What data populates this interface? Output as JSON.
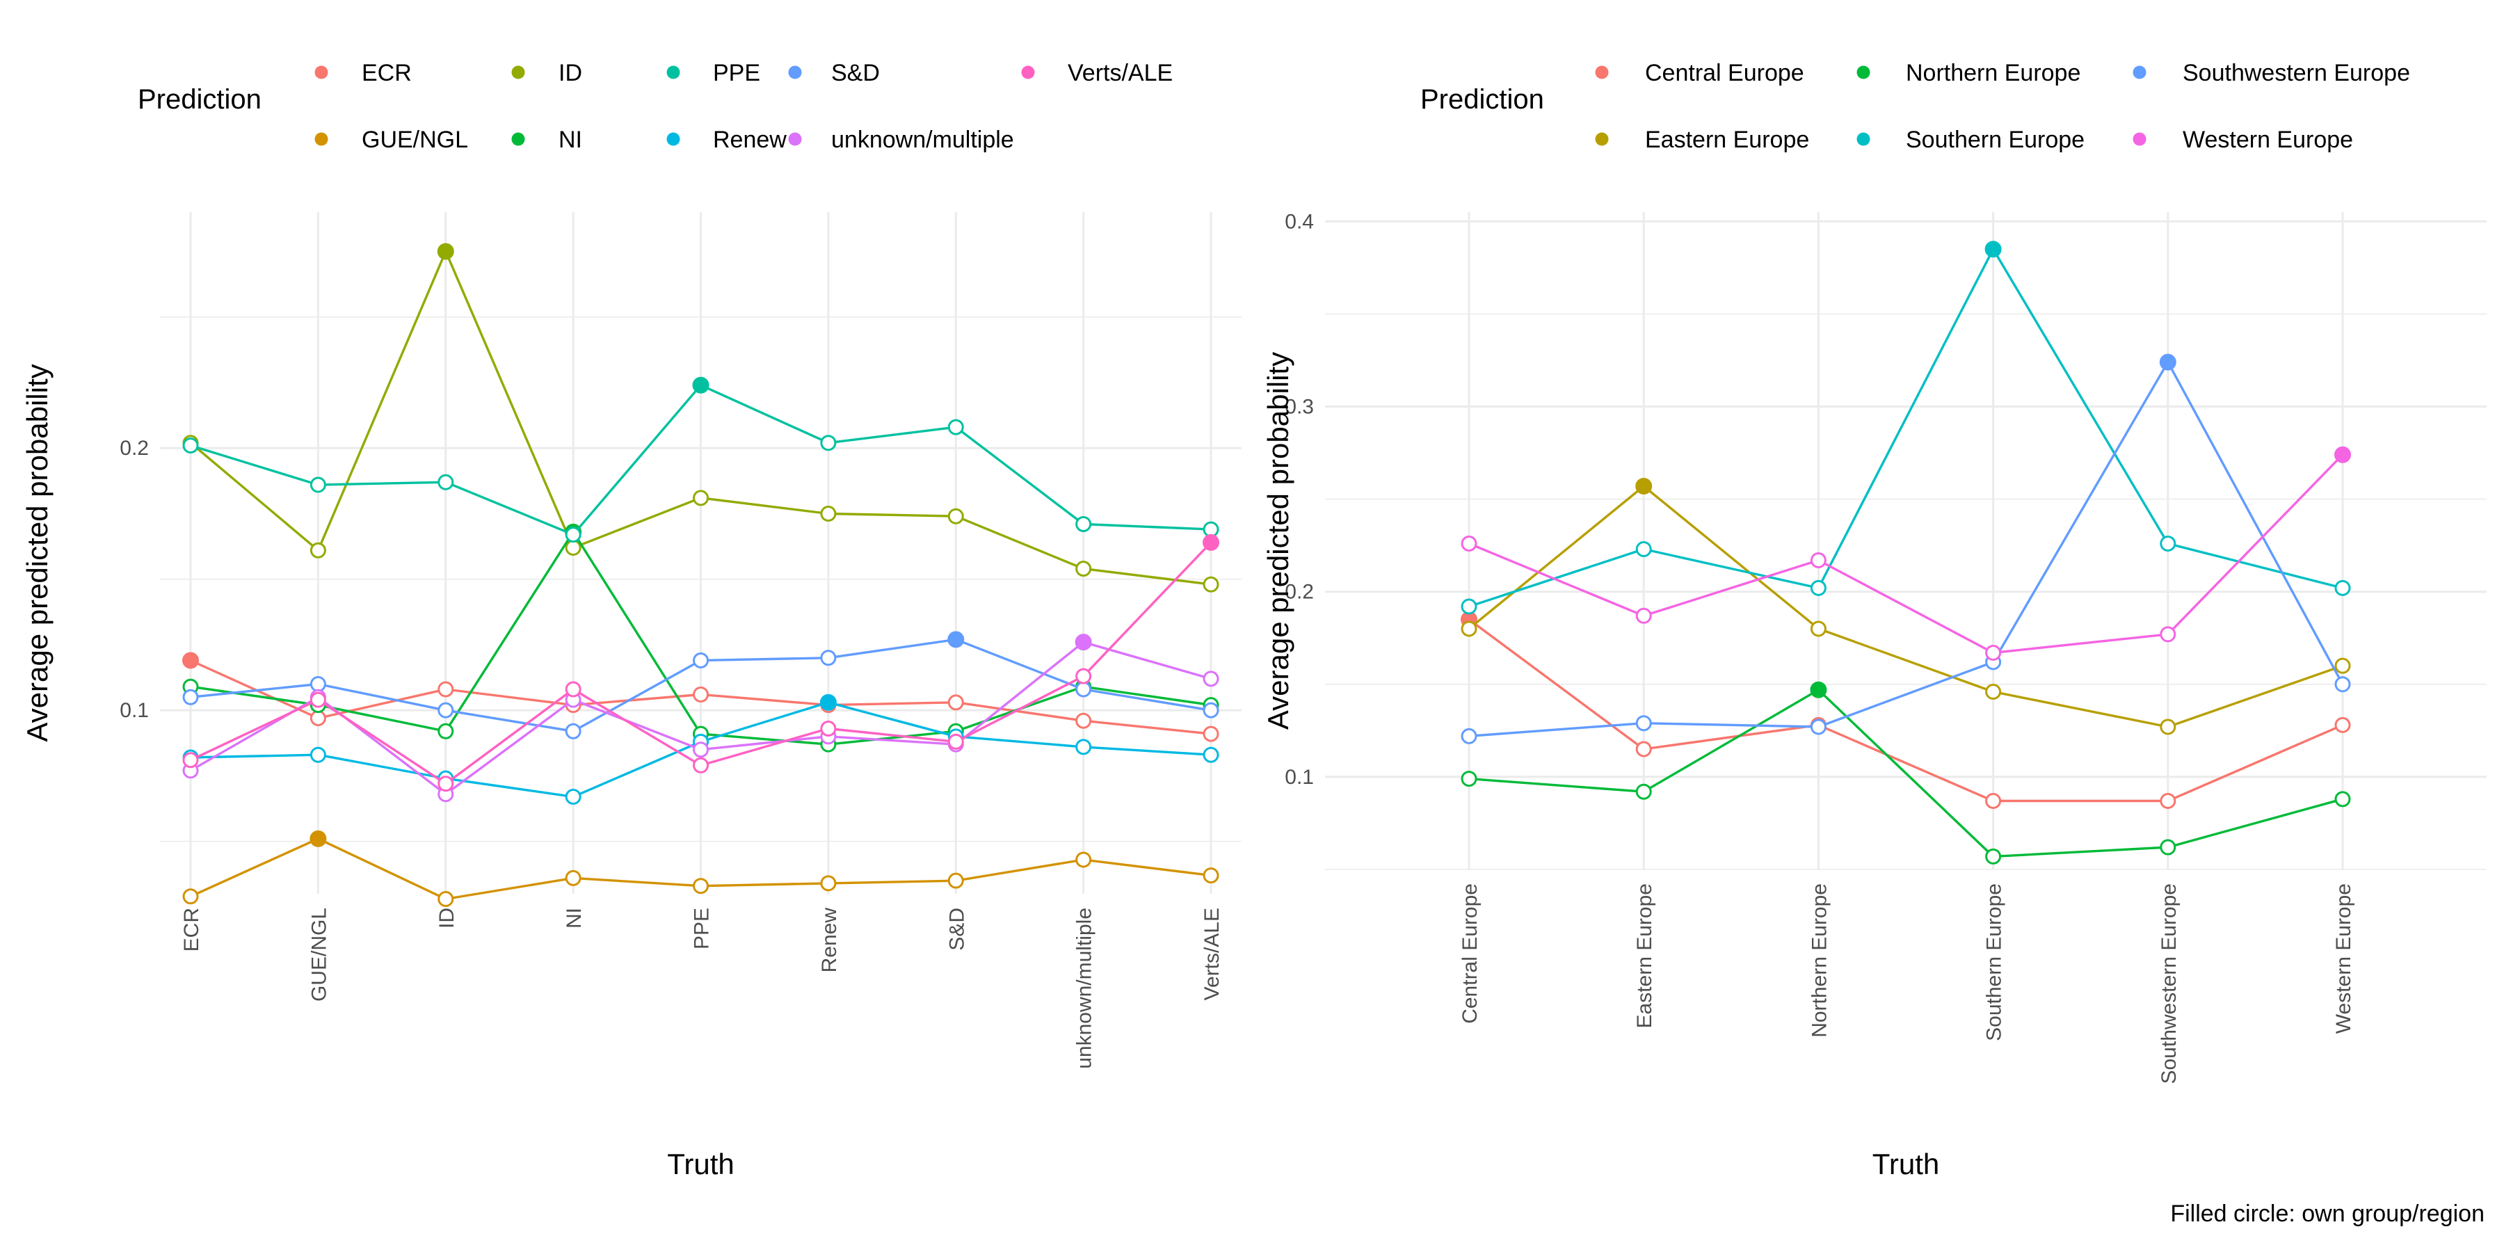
{
  "caption": "Filled circle: own group/region",
  "chart_data": [
    {
      "type": "line",
      "legend_title": "Prediction",
      "legend_placement": "top",
      "xlabel": "Truth",
      "ylabel": "Average predicted probability",
      "categories": [
        "ECR",
        "GUE/NGL",
        "ID",
        "NI",
        "PPE",
        "Renew",
        "S&D",
        "unknown/multiple",
        "Verts/ALE"
      ],
      "ylim": [
        0.03,
        0.29
      ],
      "yticks": [
        0.1,
        0.2
      ],
      "ytick_labels": [
        "0.1",
        "0.2"
      ],
      "grid": true,
      "series": [
        {
          "name": "ECR",
          "color": "#F8766D",
          "values": [
            0.119,
            0.097,
            0.108,
            0.102,
            0.106,
            0.102,
            0.103,
            0.096,
            0.091
          ]
        },
        {
          "name": "GUE/NGL",
          "color": "#D39200",
          "values": [
            0.029,
            0.051,
            0.028,
            0.036,
            0.033,
            0.034,
            0.035,
            0.043,
            0.037
          ]
        },
        {
          "name": "ID",
          "color": "#93AA00",
          "values": [
            0.202,
            0.161,
            0.275,
            0.162,
            0.181,
            0.175,
            0.174,
            0.154,
            0.148
          ]
        },
        {
          "name": "NI",
          "color": "#00BA38",
          "values": [
            0.109,
            0.102,
            0.092,
            0.168,
            0.091,
            0.087,
            0.092,
            0.109,
            0.102
          ]
        },
        {
          "name": "PPE",
          "color": "#00C19F",
          "values": [
            0.201,
            0.186,
            0.187,
            0.167,
            0.224,
            0.202,
            0.208,
            0.171,
            0.169
          ]
        },
        {
          "name": "Renew",
          "color": "#00B9E3",
          "values": [
            0.082,
            0.083,
            0.074,
            0.067,
            0.088,
            0.103,
            0.09,
            0.086,
            0.083
          ]
        },
        {
          "name": "S&D",
          "color": "#619CFF",
          "values": [
            0.105,
            0.11,
            0.1,
            0.092,
            0.119,
            0.12,
            0.127,
            0.108,
            0.1
          ]
        },
        {
          "name": "unknown/multiple",
          "color": "#DB72FB",
          "values": [
            0.077,
            0.105,
            0.068,
            0.104,
            0.085,
            0.09,
            0.087,
            0.126,
            0.112
          ]
        },
        {
          "name": "Verts/ALE",
          "color": "#FF61C3",
          "values": [
            0.081,
            0.104,
            0.072,
            0.108,
            0.079,
            0.093,
            0.088,
            0.113,
            0.164
          ]
        }
      ]
    },
    {
      "type": "line",
      "legend_title": "Prediction",
      "legend_placement": "top",
      "xlabel": "Truth",
      "ylabel": "Average predicted probability",
      "categories": [
        "Central Europe",
        "Eastern Europe",
        "Northern Europe",
        "Southern Europe",
        "Southwestern Europe",
        "Western Europe"
      ],
      "ylim": [
        0.05,
        0.405
      ],
      "yticks": [
        0.1,
        0.2,
        0.3,
        0.4
      ],
      "ytick_labels": [
        "0.1",
        "0.2",
        "0.3",
        "0.4"
      ],
      "grid": true,
      "series": [
        {
          "name": "Central Europe",
          "color": "#F8766D",
          "values": [
            0.185,
            0.115,
            0.128,
            0.087,
            0.087,
            0.128
          ]
        },
        {
          "name": "Eastern Europe",
          "color": "#B79F00",
          "values": [
            0.18,
            0.257,
            0.18,
            0.146,
            0.127,
            0.16
          ]
        },
        {
          "name": "Northern Europe",
          "color": "#00BA38",
          "values": [
            0.099,
            0.092,
            0.147,
            0.057,
            0.062,
            0.088
          ]
        },
        {
          "name": "Southern Europe",
          "color": "#00BFC4",
          "values": [
            0.192,
            0.223,
            0.202,
            0.385,
            0.226,
            0.202
          ]
        },
        {
          "name": "Southwestern Europe",
          "color": "#619CFF",
          "values": [
            0.122,
            0.129,
            0.127,
            0.162,
            0.324,
            0.15
          ]
        },
        {
          "name": "Western Europe",
          "color": "#F564E3",
          "values": [
            0.226,
            0.187,
            0.217,
            0.167,
            0.177,
            0.274
          ]
        }
      ]
    }
  ]
}
